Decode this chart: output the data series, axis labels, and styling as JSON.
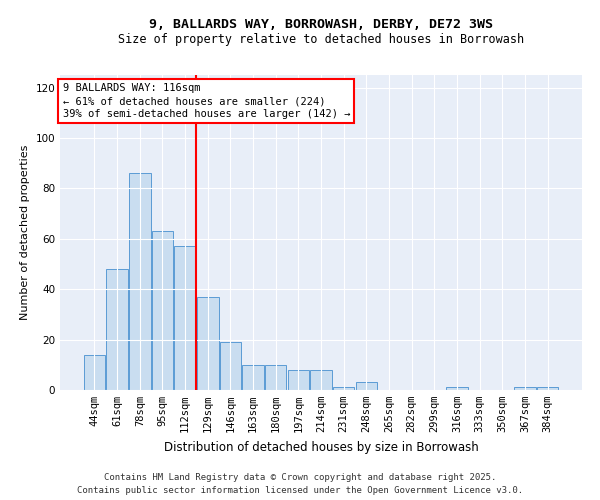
{
  "title1": "9, BALLARDS WAY, BORROWASH, DERBY, DE72 3WS",
  "title2": "Size of property relative to detached houses in Borrowash",
  "xlabel": "Distribution of detached houses by size in Borrowash",
  "ylabel": "Number of detached properties",
  "categories": [
    "44sqm",
    "61sqm",
    "78sqm",
    "95sqm",
    "112sqm",
    "129sqm",
    "146sqm",
    "163sqm",
    "180sqm",
    "197sqm",
    "214sqm",
    "231sqm",
    "248sqm",
    "265sqm",
    "282sqm",
    "299sqm",
    "316sqm",
    "333sqm",
    "350sqm",
    "367sqm",
    "384sqm"
  ],
  "values": [
    14,
    48,
    86,
    63,
    57,
    37,
    19,
    10,
    10,
    8,
    8,
    1,
    3,
    0,
    0,
    0,
    1,
    0,
    0,
    1,
    1
  ],
  "bar_color": "#c9ddf0",
  "bar_edge_color": "#5b9bd5",
  "background_color": "#e8eef8",
  "vline_x": 4.5,
  "vline_color": "red",
  "annotation_text1": "9 BALLARDS WAY: 116sqm",
  "annotation_text2": "← 61% of detached houses are smaller (224)",
  "annotation_text3": "39% of semi-detached houses are larger (142) →",
  "ylim": [
    0,
    125
  ],
  "yticks": [
    0,
    20,
    40,
    60,
    80,
    100,
    120
  ],
  "footer1": "Contains HM Land Registry data © Crown copyright and database right 2025.",
  "footer2": "Contains public sector information licensed under the Open Government Licence v3.0.",
  "title1_fontsize": 9.5,
  "title2_fontsize": 8.5,
  "xlabel_fontsize": 8.5,
  "ylabel_fontsize": 8,
  "tick_fontsize": 7.5,
  "annotation_fontsize": 7.5,
  "footer_fontsize": 6.5
}
